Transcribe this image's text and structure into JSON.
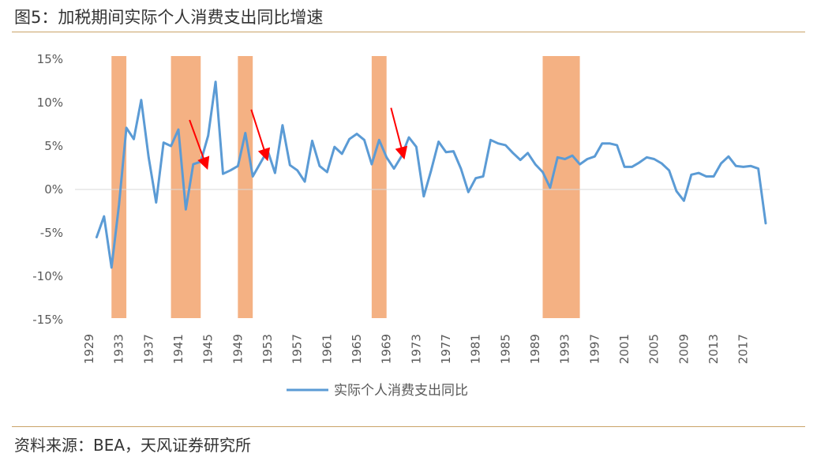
{
  "header": {
    "title": "图5：加税期间实际个人消费支出同比增速"
  },
  "footer": {
    "source": "资料来源：BEA，天风证券研究所"
  },
  "colors": {
    "line": "#5b9bd5",
    "band": "#f4b183",
    "arrow": "#ff0000",
    "axis": "#d9d9d9",
    "rule": "#c9a368"
  },
  "chart_data": {
    "type": "line",
    "title": "",
    "xlabel": "",
    "ylabel": "",
    "ylim": [
      -15,
      15
    ],
    "xlim": [
      1929,
      2020
    ],
    "y_ticks": [
      15,
      10,
      5,
      0,
      -5,
      -10,
      -15
    ],
    "y_tick_labels": [
      "15%",
      "10%",
      "5%",
      "0%",
      "-5%",
      "-10%",
      "-15%"
    ],
    "x_ticks": [
      "1929",
      "1933",
      "1937",
      "1941",
      "1945",
      "1949",
      "1953",
      "1957",
      "1961",
      "1965",
      "1969",
      "1973",
      "1977",
      "1981",
      "1985",
      "1989",
      "1993",
      "1997",
      "2001",
      "2005",
      "2009",
      "2013",
      "2017"
    ],
    "legend_position": "bottom",
    "series": [
      {
        "name": "实际个人消费支出同比",
        "x": [
          1930,
          1931,
          1932,
          1933,
          1934,
          1935,
          1936,
          1937,
          1938,
          1939,
          1940,
          1941,
          1942,
          1943,
          1944,
          1945,
          1946,
          1947,
          1948,
          1949,
          1950,
          1951,
          1952,
          1953,
          1954,
          1955,
          1956,
          1957,
          1958,
          1959,
          1960,
          1961,
          1962,
          1963,
          1964,
          1965,
          1966,
          1967,
          1968,
          1969,
          1970,
          1971,
          1972,
          1973,
          1974,
          1975,
          1976,
          1977,
          1978,
          1979,
          1980,
          1981,
          1982,
          1983,
          1984,
          1985,
          1986,
          1987,
          1988,
          1989,
          1990,
          1991,
          1992,
          1993,
          1994,
          1995,
          1996,
          1997,
          1998,
          1999,
          2000,
          2001,
          2002,
          2003,
          2004,
          2005,
          2006,
          2007,
          2008,
          2009,
          2010,
          2011,
          2012,
          2013,
          2014,
          2015,
          2016,
          2017,
          2018,
          2019,
          2020
        ],
        "values": [
          -5.5,
          -3.1,
          -9.0,
          -1.8,
          7.1,
          5.8,
          10.3,
          3.7,
          -1.5,
          5.4,
          5.0,
          6.9,
          -2.3,
          2.9,
          3.2,
          6.2,
          12.4,
          1.8,
          2.2,
          2.7,
          6.5,
          1.5,
          3.0,
          4.5,
          1.9,
          7.4,
          2.8,
          2.2,
          0.9,
          5.6,
          2.7,
          2.0,
          4.9,
          4.1,
          5.8,
          6.4,
          5.7,
          2.9,
          5.7,
          3.7,
          2.4,
          3.8,
          6.0,
          4.9,
          -0.8,
          2.2,
          5.5,
          4.3,
          4.4,
          2.4,
          -0.3,
          1.3,
          1.5,
          5.7,
          5.3,
          5.1,
          4.2,
          3.4,
          4.2,
          2.9,
          2.0,
          0.2,
          3.7,
          3.5,
          3.9,
          2.9,
          3.5,
          3.8,
          5.3,
          5.3,
          5.1,
          2.6,
          2.6,
          3.1,
          3.7,
          3.5,
          3.0,
          2.2,
          -0.2,
          -1.3,
          1.7,
          1.9,
          1.5,
          1.5,
          3.0,
          3.8,
          2.7,
          2.6,
          2.7,
          2.4,
          -3.9
        ]
      }
    ],
    "shaded_periods": [
      [
        1932,
        1934
      ],
      [
        1940,
        1944
      ],
      [
        1949,
        1951
      ],
      [
        1967,
        1969
      ],
      [
        1990,
        1995
      ]
    ],
    "arrows": [
      {
        "from": [
          1942.5,
          8.0
        ],
        "to": [
          1944.8,
          2.6
        ]
      },
      {
        "from": [
          1950.8,
          9.2
        ],
        "to": [
          1952.9,
          3.6
        ]
      },
      {
        "from": [
          1969.6,
          9.4
        ],
        "to": [
          1971.3,
          3.8
        ]
      }
    ]
  }
}
